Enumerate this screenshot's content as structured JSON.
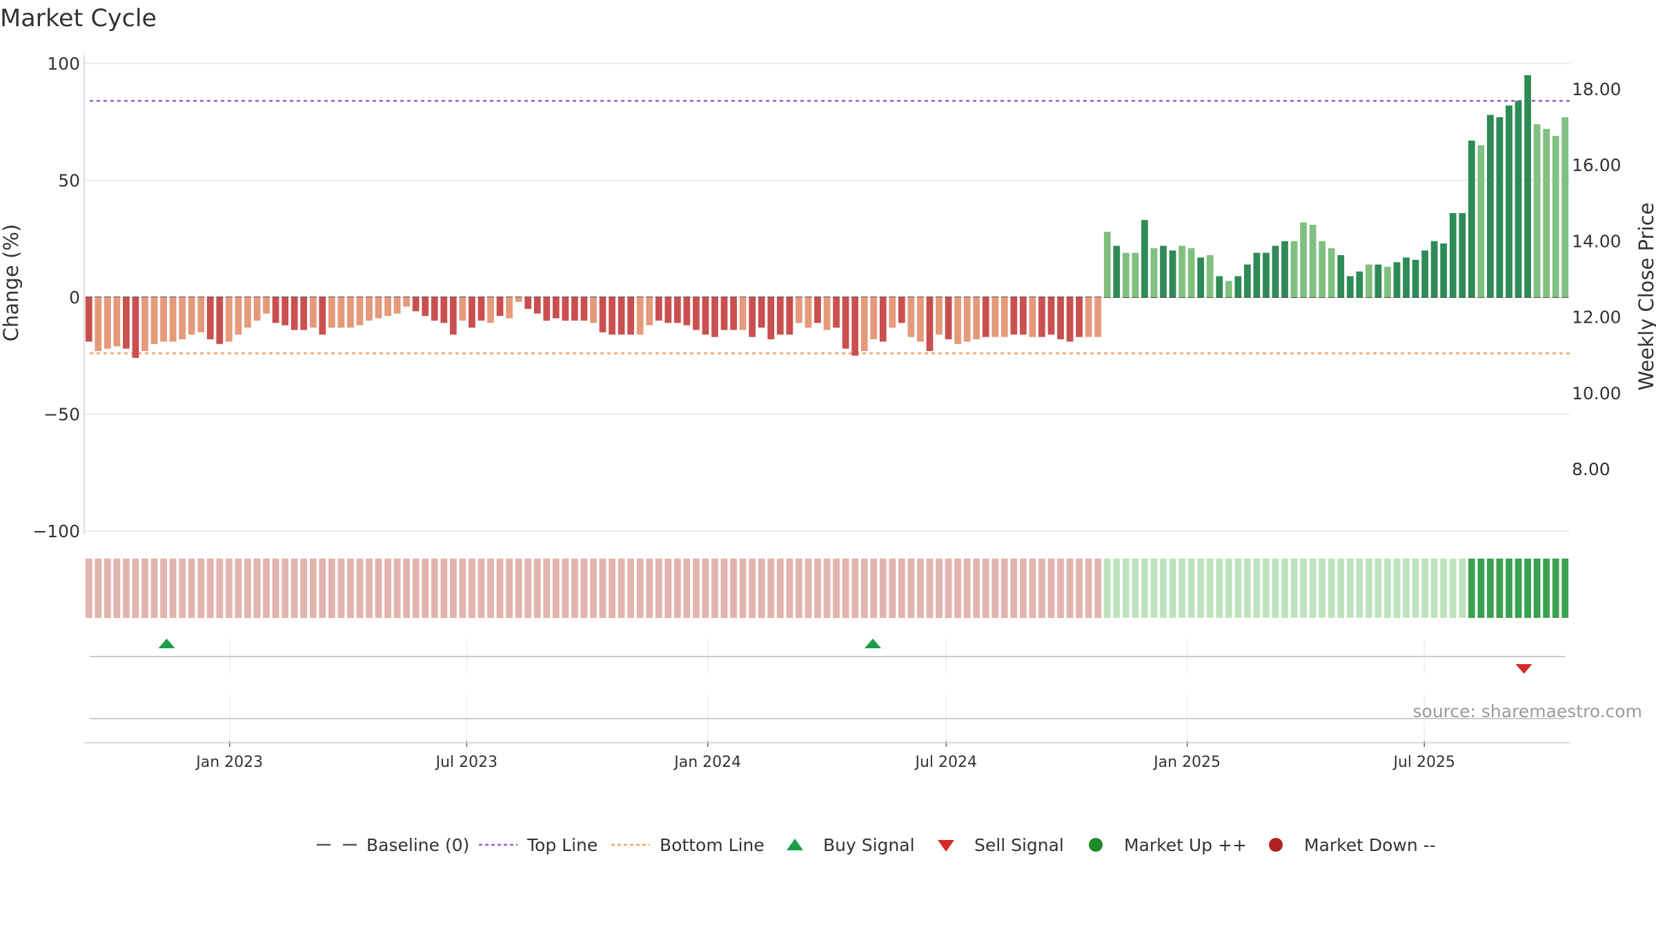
{
  "chart_data": {
    "type": "bar",
    "title": "Market Cycle",
    "ylabel": "Change (%)",
    "y2label": "Weekly Close Price",
    "ylim": [
      -105,
      100
    ],
    "y_ticks": [
      {
        "value": 100,
        "label": "100"
      },
      {
        "value": 50,
        "label": "50"
      },
      {
        "value": 0,
        "label": "0"
      },
      {
        "value": -50,
        "label": "−50"
      },
      {
        "value": -100,
        "label": "−100"
      }
    ],
    "y2lim": [
      5.8,
      18.8
    ],
    "y2_ticks": [
      {
        "value": 18,
        "label": "18.00"
      },
      {
        "value": 16,
        "label": "16.00"
      },
      {
        "value": 14,
        "label": "14.00"
      },
      {
        "value": 12,
        "label": "12.00"
      },
      {
        "value": 10,
        "label": "10.00"
      },
      {
        "value": 8,
        "label": "8.00"
      }
    ],
    "x_start": "2022-09-12",
    "x_end": "2025-10-20",
    "bar_interval_days": 7,
    "x_ticks": [
      {
        "date": "2023-01-01",
        "label": "Jan 2023"
      },
      {
        "date": "2023-07-01",
        "label": "Jul 2023"
      },
      {
        "date": "2024-01-01",
        "label": "Jan 2024"
      },
      {
        "date": "2024-07-01",
        "label": "Jul 2024"
      },
      {
        "date": "2025-01-01",
        "label": "Jan 2025"
      },
      {
        "date": "2025-07-01",
        "label": "Jul 2025"
      }
    ],
    "top_line": 84,
    "bottom_line": -24,
    "baseline": 0,
    "grid": true,
    "legend_position": "bottom",
    "colors": {
      "down_dark": "#c9504f",
      "down_light": "#e59a7a",
      "up_dark": "#2e8b57",
      "up_light": "#80c080",
      "top_line": "#9b59d0",
      "bottom_line": "#f0a060",
      "baseline": "#555555",
      "buy": "#1a9e4a",
      "sell": "#d42a2a",
      "market_up": "#1f8a2a",
      "market_down": "#b22222",
      "heat_down": "#e3b3ae",
      "heat_up_light": "#bde3bd",
      "heat_up_dark": "#3aa14f"
    },
    "series": [
      {
        "values": [
          -19,
          -23,
          -22,
          -21,
          -22,
          -26,
          -23,
          -20,
          -19,
          -19,
          -18,
          -16,
          -15,
          -18,
          -20,
          -19,
          -16,
          -13,
          -10,
          -7,
          -11,
          -12,
          -14,
          -14,
          -13,
          -16,
          -13,
          -13,
          -13,
          -12,
          -10,
          -9,
          -8,
          -7,
          -4,
          -6,
          -8,
          -10,
          -11,
          -16,
          -10,
          -13,
          -10,
          -11,
          -8,
          -9,
          -2,
          -5,
          -7,
          -10,
          -9,
          -10,
          -10,
          -10,
          -11,
          -15,
          -16,
          -16,
          -16,
          -16,
          -12,
          -10,
          -11,
          -11,
          -12,
          -14,
          -16,
          -17,
          -14,
          -14,
          -14,
          -17,
          -13,
          -18,
          -16,
          -16,
          -11,
          -13,
          -11,
          -14,
          -13,
          -22,
          -25,
          -23,
          -18,
          -19,
          -13,
          -11,
          -17,
          -19,
          -23,
          -16,
          -18,
          -20,
          -19,
          -18,
          -17,
          -17,
          -17,
          -16,
          -16,
          -17,
          -17,
          -16,
          -18,
          -19,
          -17,
          -17,
          -17,
          28,
          22,
          19,
          19,
          33,
          21,
          22,
          20,
          22,
          21,
          17,
          18,
          9,
          7,
          9,
          14,
          19,
          19,
          22,
          24,
          24,
          32,
          31,
          24,
          21,
          18,
          9,
          11,
          14,
          14,
          13,
          15,
          17,
          16,
          20,
          24,
          23,
          36,
          36,
          67,
          65,
          78,
          77,
          82,
          84,
          95,
          74,
          72,
          69,
          77
        ],
        "shades": "DLLLDDLLLLLLLDDLLLLLDDDDLDLLLLLLLLLDDDDDLDDLDLLDDDDDDDLDDDDLLDDDDDDDDDLDDDDDLLDLDDDLLDLDLLDLDLLLDLLDDLDDDDDLLLDLLDLDDLLDLDLDDDDDDLLLLLDDDLDLDDDDDDDDDLDDDDDLLLLLLDD"
      }
    ],
    "heat_strip": [
      1,
      1,
      1,
      1,
      1,
      1,
      1,
      1,
      1,
      1,
      1,
      1,
      1,
      1,
      1,
      1,
      1,
      1,
      1,
      1,
      1,
      1,
      1,
      1,
      1,
      1,
      1,
      1,
      1,
      1,
      1,
      1,
      1,
      1,
      1,
      1,
      1,
      1,
      1,
      1,
      1,
      1,
      1,
      1,
      1,
      1,
      1,
      1,
      1,
      1,
      1,
      1,
      1,
      1,
      1,
      1,
      1,
      1,
      1,
      1,
      1,
      1,
      1,
      1,
      1,
      1,
      1,
      1,
      1,
      1,
      1,
      1,
      1,
      1,
      1,
      1,
      1,
      1,
      1,
      1,
      1,
      1,
      1,
      1,
      1,
      1,
      1,
      1,
      1,
      1,
      1,
      1,
      1,
      1,
      1,
      1,
      1,
      1,
      1,
      1,
      1,
      1,
      1,
      1,
      1,
      1,
      1,
      1,
      1,
      2,
      2,
      2,
      2,
      2,
      2,
      2,
      2,
      2,
      2,
      2,
      2,
      2,
      2,
      2,
      2,
      2,
      2,
      2,
      2,
      2,
      2,
      2,
      2,
      2,
      2,
      2,
      2,
      2,
      2,
      2,
      2,
      2,
      2,
      2,
      2,
      2,
      2,
      2,
      3,
      3,
      3,
      3,
      3,
      3,
      3,
      3,
      3,
      3,
      3
    ],
    "buy_signals": [
      "2022-11-14",
      "2024-05-06"
    ],
    "sell_signals": [
      "2025-09-15"
    ],
    "source": "source: sharemaestro.com"
  },
  "legend": [
    {
      "key": "baseline",
      "label": "Baseline (0)"
    },
    {
      "key": "top",
      "label": "Top Line"
    },
    {
      "key": "bottom",
      "label": "Bottom Line"
    },
    {
      "key": "buy",
      "label": "Buy Signal"
    },
    {
      "key": "sell",
      "label": "Sell Signal"
    },
    {
      "key": "up",
      "label": "Market Up ++"
    },
    {
      "key": "down",
      "label": "Market Down --"
    }
  ]
}
